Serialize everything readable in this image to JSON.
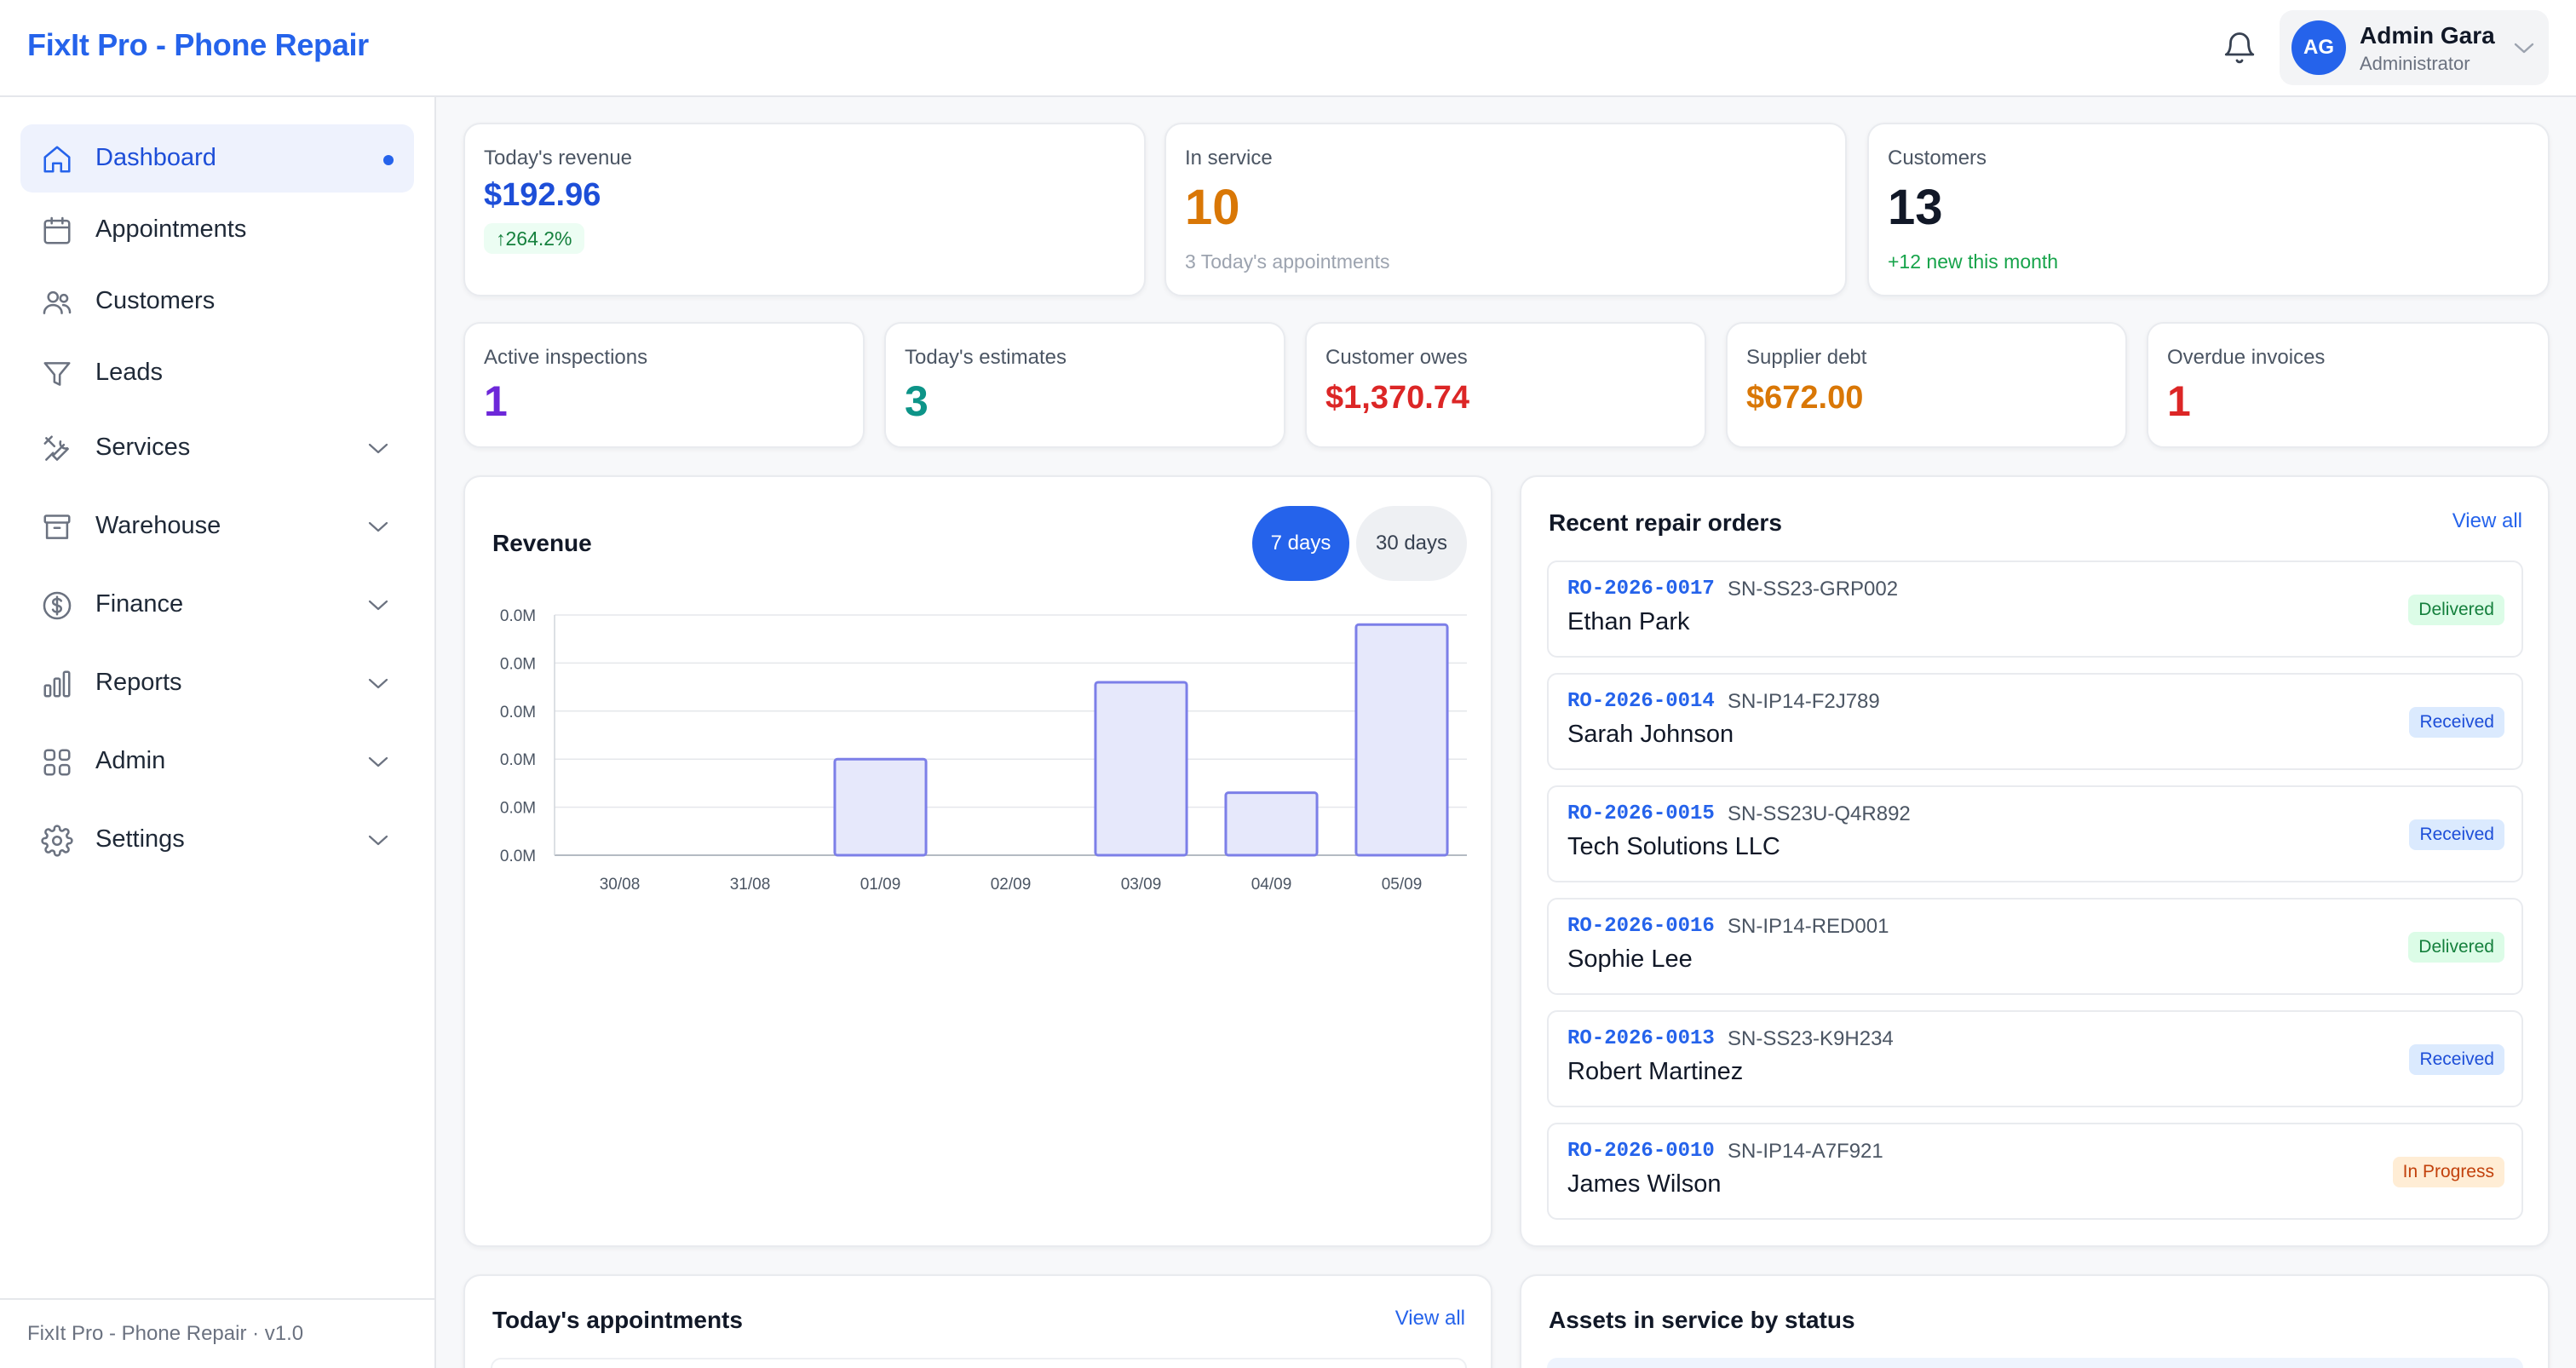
{
  "app": {
    "title": "FixIt Pro - Phone Repair"
  },
  "header": {
    "user": {
      "initials": "AG",
      "name": "Admin Gara",
      "role": "Administrator"
    }
  },
  "sidebar": {
    "items": [
      {
        "label": "Dashboard",
        "icon": "home-icon",
        "active": true
      },
      {
        "label": "Appointments",
        "icon": "calendar-icon"
      },
      {
        "label": "Customers",
        "icon": "users-icon"
      },
      {
        "label": "Leads",
        "icon": "funnel-icon"
      },
      {
        "label": "Services",
        "icon": "tools-icon",
        "expandable": true
      },
      {
        "label": "Warehouse",
        "icon": "archive-icon",
        "expandable": true
      },
      {
        "label": "Finance",
        "icon": "dollar-icon",
        "expandable": true
      },
      {
        "label": "Reports",
        "icon": "bar-chart-icon",
        "expandable": true
      },
      {
        "label": "Admin",
        "icon": "grid-icon",
        "expandable": true
      },
      {
        "label": "Settings",
        "icon": "gear-icon",
        "expandable": true
      }
    ],
    "footer": "FixIt Pro - Phone Repair · v1.0"
  },
  "stats_top": [
    {
      "label": "Today's revenue",
      "value": "$192.96",
      "badge": "↑264.2%",
      "color": "#1d4ed8"
    },
    {
      "label": "In service",
      "value": "10",
      "sub": "3 Today's appointments",
      "color": "#d97706"
    },
    {
      "label": "Customers",
      "value": "13",
      "sub": "+12 new this month",
      "color": "#111827"
    }
  ],
  "stats_bottom": [
    {
      "label": "Active inspections",
      "value": "1",
      "color": "#6d28d9"
    },
    {
      "label": "Today's estimates",
      "value": "3",
      "color": "#0d9488"
    },
    {
      "label": "Customer owes",
      "value": "$1,370.74",
      "color": "#dc2626"
    },
    {
      "label": "Supplier debt",
      "value": "$672.00",
      "color": "#d97706"
    },
    {
      "label": "Overdue invoices",
      "value": "1",
      "color": "#dc2626"
    }
  ],
  "revenue": {
    "title": "Revenue",
    "range_buttons": [
      "7 days",
      "30 days"
    ],
    "active_range": "7 days"
  },
  "chart_data": {
    "type": "bar",
    "title": "Revenue",
    "categories": [
      "30/08",
      "31/08",
      "01/09",
      "02/09",
      "03/09",
      "04/09",
      "05/09"
    ],
    "values": [
      0,
      0,
      4e-05,
      0,
      7.2e-05,
      2.6e-05,
      9.6e-05
    ],
    "y_tick_labels": [
      "0.0M",
      "0.0M",
      "0.0M",
      "0.0M",
      "0.0M",
      "0.0M"
    ],
    "ylim": [
      0,
      0.0001
    ],
    "grid": true,
    "colors": {
      "bar_fill": "#e6e8fb",
      "bar_stroke": "#7c7fe8"
    }
  },
  "orders": {
    "title": "Recent repair orders",
    "view_all": "View all",
    "rows": [
      {
        "code": "RO-2026-0017",
        "sn": "SN-SS23-GRP002",
        "customer": "Ethan Park",
        "status": "Delivered",
        "kind": "delivered"
      },
      {
        "code": "RO-2026-0014",
        "sn": "SN-IP14-F2J789",
        "customer": "Sarah Johnson",
        "status": "Received",
        "kind": "received"
      },
      {
        "code": "RO-2026-0015",
        "sn": "SN-SS23U-Q4R892",
        "customer": "Tech Solutions LLC",
        "status": "Received",
        "kind": "received"
      },
      {
        "code": "RO-2026-0016",
        "sn": "SN-IP14-RED001",
        "customer": "Sophie Lee",
        "status": "Delivered",
        "kind": "delivered"
      },
      {
        "code": "RO-2026-0013",
        "sn": "SN-SS23-K9H234",
        "customer": "Robert Martinez",
        "status": "Received",
        "kind": "received"
      },
      {
        "code": "RO-2026-0010",
        "sn": "SN-IP14-A7F921",
        "customer": "James Wilson",
        "status": "In Progress",
        "kind": "progress"
      }
    ]
  },
  "appointments": {
    "title": "Today's appointments",
    "view_all": "View all"
  },
  "assets": {
    "title": "Assets in service by status"
  }
}
